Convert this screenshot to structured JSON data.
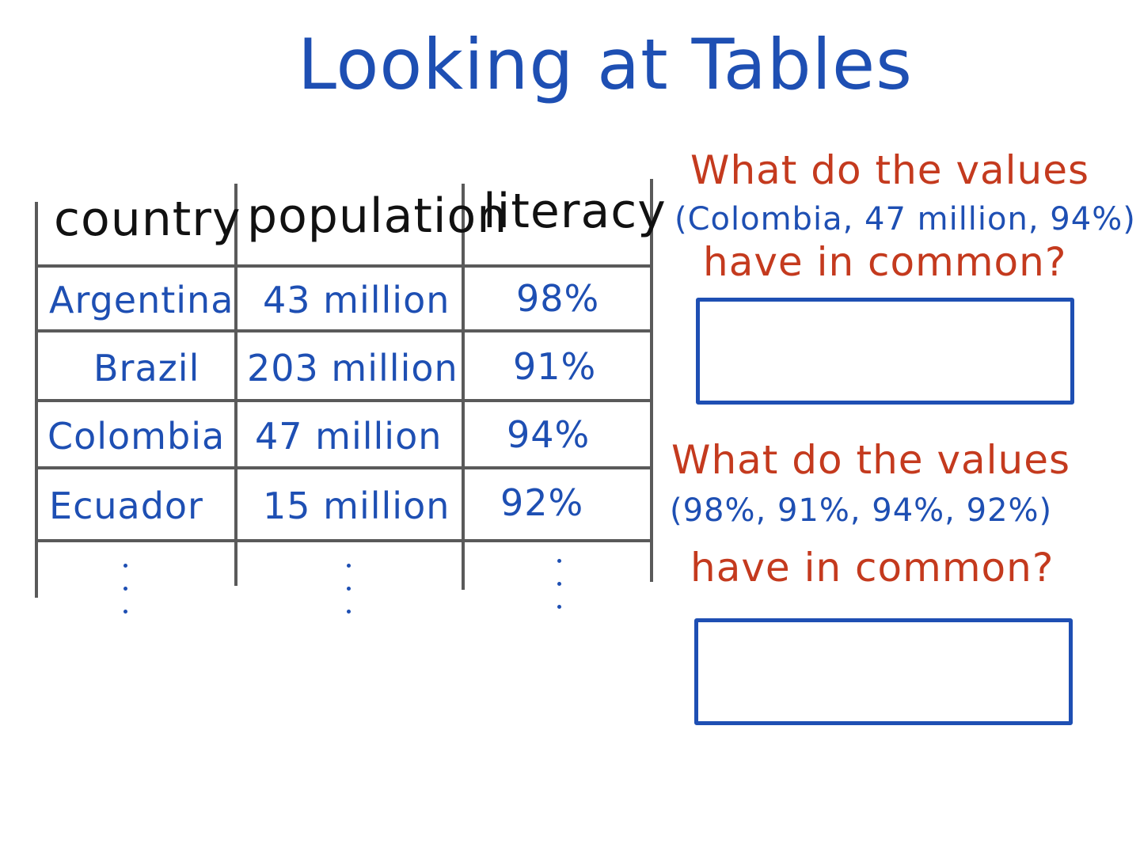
{
  "title": "Looking at Tables",
  "table": {
    "headers": [
      "country",
      "population",
      "literacy"
    ],
    "rows": [
      [
        "Argentina",
        "43 million",
        "98%"
      ],
      [
        "Brazil",
        "203 million",
        "91%"
      ],
      [
        "Colombia",
        "47 million",
        "94%"
      ],
      [
        "Ecuador",
        "15 million",
        "92%"
      ]
    ]
  },
  "question1": {
    "line1": "What do the values",
    "values": "(Colombia, 47 million, 94%)",
    "line2": "have in common?"
  },
  "question2": {
    "line1": "What do the values",
    "values": "(98%, 91%, 94%, 92%)",
    "line2": "have in common?"
  },
  "colors": {
    "ink_blue": "#1e4fb3",
    "ink_red": "#c43a1e",
    "ink_black": "#111111",
    "grid_gray": "#5a5a5a"
  }
}
